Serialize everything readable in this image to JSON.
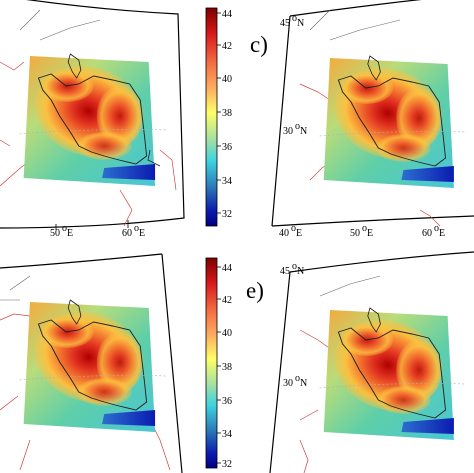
{
  "panel_labels": {
    "c": "c)",
    "e": "e)"
  },
  "colorbar_top": {
    "ticks": [
      "44",
      "42",
      "40",
      "38",
      "36",
      "34",
      "32"
    ],
    "gradient": [
      "#7f0000",
      "#d7191c",
      "#f46d43",
      "#fdae61",
      "#ffff66",
      "#a6e0a0",
      "#3fd3e0",
      "#2c7bb6",
      "#0b1bb0",
      "#00007f"
    ]
  },
  "colorbar_bottom": {
    "ticks": [
      "44",
      "42",
      "40",
      "38",
      "36",
      "34",
      "32"
    ]
  },
  "map_top_left": {
    "lon_labels": [
      "50",
      "60"
    ],
    "lon_suffix": "E"
  },
  "map_top_right": {
    "lat_labels": [
      "45",
      "30"
    ],
    "lat_suffix": "N",
    "lon_labels": [
      "40",
      "50",
      "60"
    ],
    "lon_suffix": "E"
  },
  "map_bottom_right": {
    "lat_labels": [
      "45",
      "30"
    ],
    "lat_suffix": "N"
  },
  "colors": {
    "frame": "#000000",
    "grid": "#b0b0b0",
    "border_red": "#d04040",
    "coast": "#222222"
  }
}
